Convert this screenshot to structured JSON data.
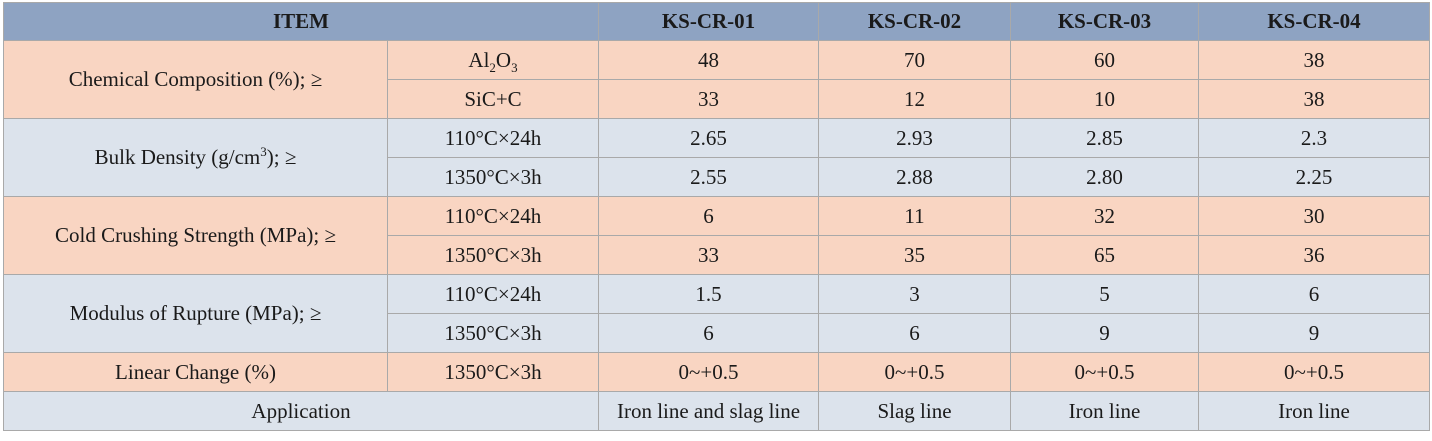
{
  "header": {
    "item": "ITEM",
    "products": [
      "KS-CR-01",
      "KS-CR-02",
      "KS-CR-03",
      "KS-CR-04"
    ]
  },
  "chemical": {
    "label": "Chemical Composition (%); ≥",
    "rows": [
      {
        "cond_main": "Al",
        "cond_sub1": "2",
        "cond_mid": "O",
        "cond_sub2": "3",
        "values": [
          "48",
          "70",
          "60",
          "38"
        ]
      },
      {
        "cond": "SiC+C",
        "values": [
          "33",
          "12",
          "10",
          "38"
        ]
      }
    ]
  },
  "bulk_density": {
    "label_pre": "Bulk Density (g/cm",
    "label_sup": "3",
    "label_post": "); ≥",
    "rows": [
      {
        "cond": "110°C×24h",
        "values": [
          "2.65",
          "2.93",
          "2.85",
          "2.3"
        ]
      },
      {
        "cond": "1350°C×3h",
        "values": [
          "2.55",
          "2.88",
          "2.80",
          "2.25"
        ]
      }
    ]
  },
  "cold_crushing": {
    "label": "Cold Crushing Strength (MPa); ≥",
    "rows": [
      {
        "cond": "110°C×24h",
        "values": [
          "6",
          "11",
          "32",
          "30"
        ]
      },
      {
        "cond": "1350°C×3h",
        "values": [
          "33",
          "35",
          "65",
          "36"
        ]
      }
    ]
  },
  "rupture": {
    "label": "Modulus of Rupture (MPa); ≥",
    "rows": [
      {
        "cond": "110°C×24h",
        "values": [
          "1.5",
          "3",
          "5",
          "6"
        ]
      },
      {
        "cond": "1350°C×3h",
        "values": [
          "6",
          "6",
          "9",
          "9"
        ]
      }
    ]
  },
  "linear_change": {
    "label": "Linear Change (%)",
    "cond": "1350°C×3h",
    "values": [
      "0~+0.5",
      "0~+0.5",
      "0~+0.5",
      "0~+0.5"
    ]
  },
  "application": {
    "label": "Application",
    "values": [
      "Iron line and slag line",
      "Slag line",
      "Iron line",
      "Iron line"
    ]
  },
  "colors": {
    "header": "#8ea3c2",
    "peach": "#f9d5c2",
    "blue": "#dce3ec",
    "border": "#a9a9a9"
  }
}
